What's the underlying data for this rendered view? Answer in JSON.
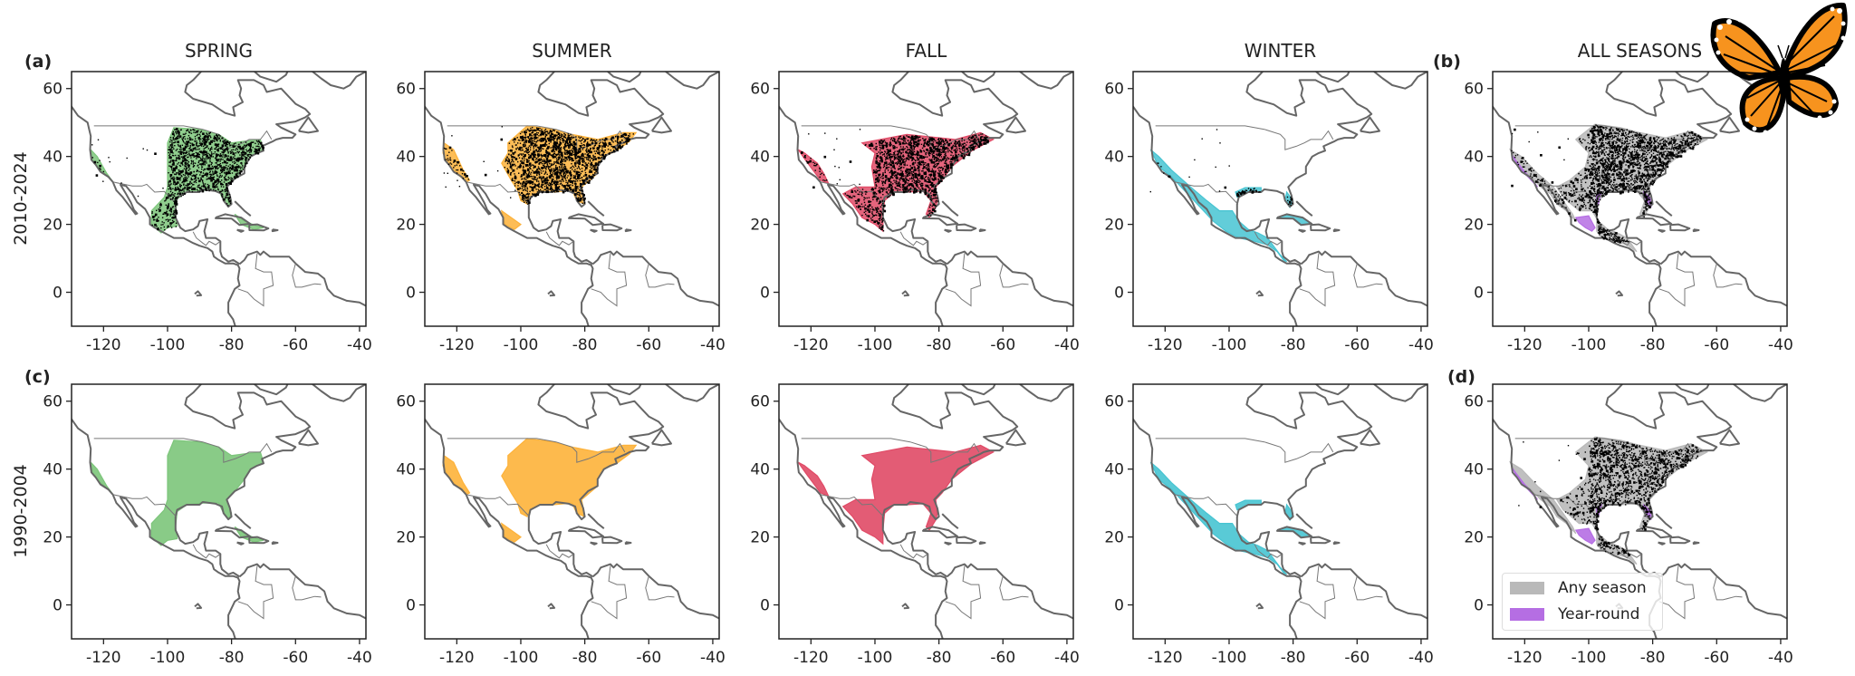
{
  "titles": {
    "spring": "SPRING",
    "summer": "SUMMER",
    "fall": "FALL",
    "winter": "WINTER",
    "all": "ALL SEASONS"
  },
  "row_labels": [
    "2010-2024",
    "1990-2004"
  ],
  "panel_letters": {
    "a": "(a)",
    "b": "(b)",
    "c": "(c)",
    "d": "(d)"
  },
  "axes": {
    "xlim": [
      -130,
      -38
    ],
    "ylim": [
      -10,
      65
    ],
    "xticks": [
      "-120",
      "-100",
      "-80",
      "-60",
      "-40"
    ],
    "xtick_values": [
      -120,
      -100,
      -80,
      -60,
      -40
    ],
    "yticks": [
      "60",
      "40",
      "20",
      "0"
    ],
    "ytick_values": [
      60,
      40,
      20,
      0
    ]
  },
  "legend": {
    "any_season": "Any season",
    "year_round": "Year-round"
  },
  "colors": {
    "spring": "#7cc57a",
    "summer": "#fdb23a",
    "fall": "#e04a66",
    "winter": "#47c4d2",
    "any_season": "#b9b9b9",
    "year_round": "#b56ee3",
    "coast": "#666666",
    "observations": "#000000",
    "butterfly": "#f7931e"
  }
}
